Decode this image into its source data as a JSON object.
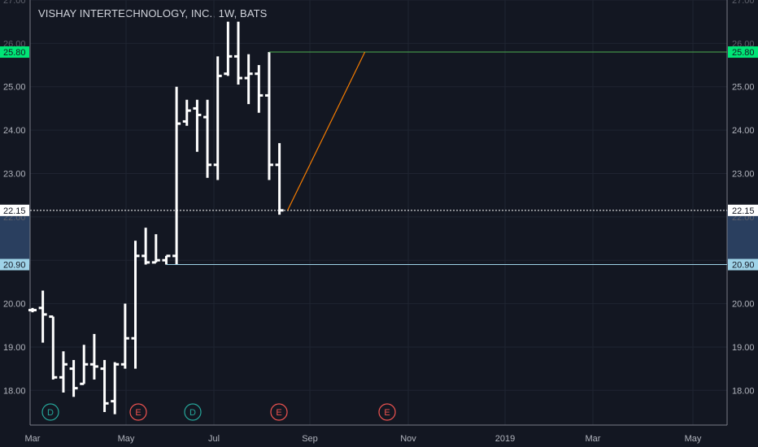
{
  "chart_data": {
    "type": "ohlc",
    "title": "VISHAY INTERTECHNOLOGY, INC., 1W, BATS",
    "ylim": [
      17.2,
      27.0
    ],
    "yticks": [
      "18.00",
      "19.00",
      "20.00",
      "23.00",
      "24.00",
      "25.00"
    ],
    "yticks_faded": [
      "22.00",
      "26.00",
      "27.00"
    ],
    "xticks": [
      "Mar",
      "May",
      "Jul",
      "Sep",
      "Nov",
      "2019",
      "Mar",
      "May"
    ],
    "grid": true,
    "price_lines": [
      {
        "label": "25.80",
        "value": 25.8,
        "color": "#4caf50",
        "label_bg": "#00e676"
      },
      {
        "label": "22.15",
        "value": 22.15,
        "color": "#ffffff",
        "style": "dotted",
        "label_bg": "#ffffff"
      },
      {
        "label": "20.90",
        "value": 20.9,
        "color": "#9fd3e8",
        "label_bg": "#9fd3e8"
      }
    ],
    "trend_line": {
      "color": "#f57c00",
      "from": 22.15,
      "to": 25.8
    },
    "event_markers": [
      {
        "label": "D",
        "type": "dividend",
        "color": "#26a69a"
      },
      {
        "label": "E",
        "type": "earnings",
        "color": "#ef5350"
      },
      {
        "label": "D",
        "type": "dividend",
        "color": "#26a69a"
      },
      {
        "label": "E",
        "type": "earnings",
        "color": "#ef5350"
      },
      {
        "label": "E",
        "type": "earnings",
        "color": "#ef5350"
      }
    ],
    "bars": [
      {
        "o": 19.85,
        "h": 19.9,
        "l": 19.8,
        "c": 19.85
      },
      {
        "o": 19.9,
        "h": 20.3,
        "l": 19.1,
        "c": 19.75
      },
      {
        "o": 19.7,
        "h": 19.7,
        "l": 18.25,
        "c": 18.3
      },
      {
        "o": 18.3,
        "h": 18.9,
        "l": 17.95,
        "c": 18.6
      },
      {
        "o": 18.5,
        "h": 18.7,
        "l": 17.85,
        "c": 18.05
      },
      {
        "o": 18.15,
        "h": 19.05,
        "l": 18.15,
        "c": 18.6
      },
      {
        "o": 18.6,
        "h": 19.3,
        "l": 18.25,
        "c": 18.55
      },
      {
        "o": 18.5,
        "h": 18.7,
        "l": 17.5,
        "c": 17.7
      },
      {
        "o": 17.75,
        "h": 18.65,
        "l": 17.45,
        "c": 18.6
      },
      {
        "o": 18.6,
        "h": 20.0,
        "l": 18.5,
        "c": 19.2
      },
      {
        "o": 19.2,
        "h": 21.45,
        "l": 18.5,
        "c": 21.1
      },
      {
        "o": 21.1,
        "h": 21.75,
        "l": 20.9,
        "c": 20.95
      },
      {
        "o": 20.95,
        "h": 21.6,
        "l": 20.95,
        "c": 21.0
      },
      {
        "o": 21.0,
        "h": 21.1,
        "l": 20.9,
        "c": 21.1
      },
      {
        "o": 21.1,
        "h": 25.0,
        "l": 20.9,
        "c": 24.15
      },
      {
        "o": 24.2,
        "h": 24.7,
        "l": 24.1,
        "c": 24.45
      },
      {
        "o": 24.5,
        "h": 24.7,
        "l": 23.5,
        "c": 24.35
      },
      {
        "o": 24.3,
        "h": 24.7,
        "l": 22.9,
        "c": 23.2
      },
      {
        "o": 23.2,
        "h": 25.7,
        "l": 22.85,
        "c": 25.25
      },
      {
        "o": 25.3,
        "h": 26.5,
        "l": 25.25,
        "c": 25.7
      },
      {
        "o": 25.7,
        "h": 26.5,
        "l": 25.05,
        "c": 25.2
      },
      {
        "o": 25.2,
        "h": 25.75,
        "l": 24.6,
        "c": 25.3
      },
      {
        "o": 25.3,
        "h": 25.5,
        "l": 24.4,
        "c": 24.8
      },
      {
        "o": 24.8,
        "h": 25.8,
        "l": 22.85,
        "c": 23.2
      },
      {
        "o": 23.2,
        "h": 23.7,
        "l": 22.05,
        "c": 22.15
      }
    ]
  }
}
